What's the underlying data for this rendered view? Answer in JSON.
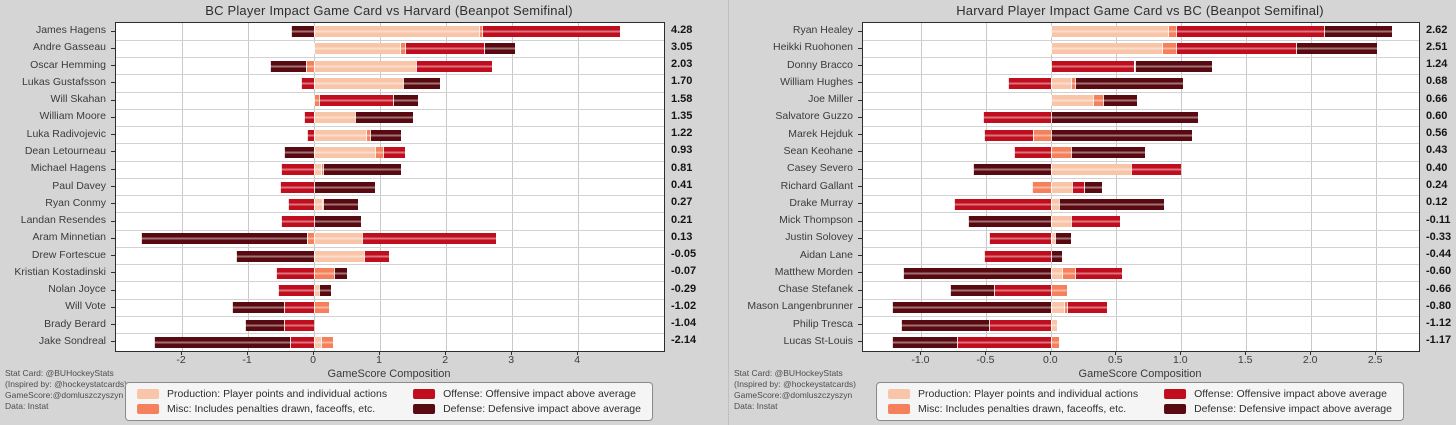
{
  "colors": {
    "production": "#F9C5A9",
    "misc": "#F4805C",
    "offense": "#C00E1E",
    "defense": "#590A10",
    "figure_background": "#D5D5D5",
    "plot_background": "#FFFFFF",
    "grid": "#C9C9C9"
  },
  "legend": {
    "items": [
      {
        "key": "production",
        "label": "Production: Player points and individual actions"
      },
      {
        "key": "misc",
        "label": "Misc: Includes penalties drawn, faceoffs, etc."
      },
      {
        "key": "offense",
        "label": "Offense: Offensive impact above average"
      },
      {
        "key": "defense",
        "label": "Defense: Defensive impact above average"
      }
    ]
  },
  "credits": [
    "Stat Card: @BUHockeyStats",
    "(Inspired by: @hockeystatcards)",
    "GameScore:@domluszczyszyn",
    "Data: Instat"
  ],
  "chart_data": [
    {
      "type": "bar",
      "orientation": "horizontal-stacked",
      "title": "BC Player Impact Game Card vs Harvard (Beanpot Semifinal)",
      "xlabel": "GameScore Composition",
      "grid": true,
      "legend_position": "bottom",
      "xlim": [
        -3.0,
        5.3
      ],
      "xticks": [
        {
          "v": -2,
          "label": "-2"
        },
        {
          "v": -1,
          "label": "-1"
        },
        {
          "v": 0,
          "label": "0"
        },
        {
          "v": 1,
          "label": "1"
        },
        {
          "v": 2,
          "label": "2"
        },
        {
          "v": 3,
          "label": "3"
        },
        {
          "v": 4,
          "label": "4"
        }
      ],
      "series_order": [
        "production",
        "misc",
        "offense",
        "defense"
      ],
      "players": [
        {
          "name": "James Hagens",
          "production": 2.5,
          "misc": 0.04,
          "offense": 2.09,
          "defense": -0.35,
          "total": "4.28"
        },
        {
          "name": "Andre Gasseau",
          "production": 1.3,
          "misc": 0.08,
          "offense": 1.2,
          "defense": 0.47,
          "total": "3.05"
        },
        {
          "name": "Oscar Hemming",
          "production": 1.55,
          "misc": -0.12,
          "offense": 1.15,
          "defense": -0.55,
          "total": "2.03"
        },
        {
          "name": "Lukas Gustafsson",
          "production": 1.35,
          "misc": 0.0,
          "offense": -0.2,
          "defense": 0.55,
          "total": "1.70"
        },
        {
          "name": "Will Skahan",
          "production": 0.0,
          "misc": 0.08,
          "offense": 1.12,
          "defense": 0.38,
          "total": "1.58"
        },
        {
          "name": "William Moore",
          "production": 0.62,
          "misc": 0.0,
          "offense": -0.15,
          "defense": 0.88,
          "total": "1.35"
        },
        {
          "name": "Luka Radivojevic",
          "production": 0.78,
          "misc": 0.06,
          "offense": -0.1,
          "defense": 0.48,
          "total": "1.22"
        },
        {
          "name": "Dean Letourneau",
          "production": 0.93,
          "misc": 0.12,
          "offense": 0.33,
          "defense": -0.45,
          "total": "0.93"
        },
        {
          "name": "Michael Hagens",
          "production": 0.1,
          "misc": 0.03,
          "offense": -0.5,
          "defense": 1.18,
          "total": "0.81"
        },
        {
          "name": "Paul Davey",
          "production": 0.0,
          "misc": 0.0,
          "offense": -0.52,
          "defense": 0.93,
          "total": "0.41"
        },
        {
          "name": "Ryan Conmy",
          "production": 0.12,
          "misc": 0.02,
          "offense": -0.4,
          "defense": 0.53,
          "total": "0.27"
        },
        {
          "name": "Landan Resendes",
          "production": 0.0,
          "misc": 0.0,
          "offense": -0.5,
          "defense": 0.71,
          "total": "0.21"
        },
        {
          "name": "Aram Minnetian",
          "production": 0.73,
          "misc": -0.1,
          "offense": 2.02,
          "defense": -2.52,
          "total": "0.13"
        },
        {
          "name": "Drew Fortescue",
          "production": 0.75,
          "misc": 0.0,
          "offense": 0.38,
          "defense": -1.18,
          "total": "-0.05"
        },
        {
          "name": "Kristian Kostadinski",
          "production": 0.0,
          "misc": 0.3,
          "offense": -0.57,
          "defense": 0.2,
          "total": "-0.07"
        },
        {
          "name": "Nolan Joyce",
          "production": 0.08,
          "misc": 0.0,
          "offense": -0.55,
          "defense": 0.18,
          "total": "-0.29"
        },
        {
          "name": "Will Vote",
          "production": 0.0,
          "misc": 0.23,
          "offense": -0.45,
          "defense": -0.8,
          "total": "-1.02"
        },
        {
          "name": "Brady Berard",
          "production": 0.0,
          "misc": 0.0,
          "offense": -0.46,
          "defense": -0.58,
          "total": "-1.04"
        },
        {
          "name": "Jake Sondreal",
          "production": 0.11,
          "misc": 0.17,
          "offense": -0.37,
          "defense": -2.05,
          "total": "-2.14"
        }
      ]
    },
    {
      "type": "bar",
      "orientation": "horizontal-stacked",
      "title": "Harvard Player Impact Game Card vs BC (Beanpot Semifinal)",
      "xlabel": "GameScore Composition",
      "grid": true,
      "legend_position": "bottom",
      "xlim": [
        -1.45,
        2.83
      ],
      "xticks": [
        {
          "v": -1.0,
          "label": "-1.0"
        },
        {
          "v": -0.5,
          "label": "-0.5"
        },
        {
          "v": 0.0,
          "label": "0.0"
        },
        {
          "v": 0.5,
          "label": "0.5"
        },
        {
          "v": 1.0,
          "label": "1.0"
        },
        {
          "v": 1.5,
          "label": "1.5"
        },
        {
          "v": 2.0,
          "label": "2.0"
        },
        {
          "v": 2.5,
          "label": "2.5"
        }
      ],
      "series_order": [
        "production",
        "misc",
        "offense",
        "defense"
      ],
      "players": [
        {
          "name": "Ryan Healey",
          "production": 0.9,
          "misc": 0.06,
          "offense": 1.14,
          "defense": 0.52,
          "total": "2.62"
        },
        {
          "name": "Heikki Ruohonen",
          "production": 0.85,
          "misc": 0.11,
          "offense": 0.92,
          "defense": 0.63,
          "total": "2.51"
        },
        {
          "name": "Donny Bracco",
          "production": 0.0,
          "misc": 0.0,
          "offense": 0.64,
          "defense": 0.6,
          "total": "1.24"
        },
        {
          "name": "William Hughes",
          "production": 0.15,
          "misc": 0.03,
          "offense": -0.33,
          "defense": 0.83,
          "total": "0.68"
        },
        {
          "name": "Joe Miller",
          "production": 0.32,
          "misc": 0.08,
          "offense": 0.0,
          "defense": 0.26,
          "total": "0.66"
        },
        {
          "name": "Salvatore Guzzo",
          "production": 0.0,
          "misc": 0.0,
          "offense": -0.53,
          "defense": 1.13,
          "total": "0.60"
        },
        {
          "name": "Marek Hejduk",
          "production": 0.0,
          "misc": -0.14,
          "offense": -0.38,
          "defense": 1.08,
          "total": "0.56"
        },
        {
          "name": "Sean Keohane",
          "production": 0.0,
          "misc": 0.15,
          "offense": -0.29,
          "defense": 0.57,
          "total": "0.43"
        },
        {
          "name": "Casey Severo",
          "production": 0.61,
          "misc": 0.0,
          "offense": 0.39,
          "defense": -0.6,
          "total": "0.40"
        },
        {
          "name": "Richard Gallant",
          "production": 0.16,
          "misc": -0.15,
          "offense": 0.09,
          "defense": 0.14,
          "total": "0.24"
        },
        {
          "name": "Drake Murray",
          "production": 0.06,
          "misc": 0.0,
          "offense": -0.75,
          "defense": 0.81,
          "total": "0.12"
        },
        {
          "name": "Mick Thompson",
          "production": 0.15,
          "misc": 0.0,
          "offense": 0.38,
          "defense": -0.64,
          "total": "-0.11"
        },
        {
          "name": "Justin Solovey",
          "production": 0.03,
          "misc": 0.0,
          "offense": -0.48,
          "defense": 0.12,
          "total": "-0.33"
        },
        {
          "name": "Aidan Lane",
          "production": 0.0,
          "misc": 0.0,
          "offense": -0.52,
          "defense": 0.08,
          "total": "-0.44"
        },
        {
          "name": "Matthew Morden",
          "production": 0.08,
          "misc": 0.1,
          "offense": 0.36,
          "defense": -1.14,
          "total": "-0.60"
        },
        {
          "name": "Chase Stefanek",
          "production": 0.0,
          "misc": 0.12,
          "offense": -0.44,
          "defense": -0.34,
          "total": "-0.66"
        },
        {
          "name": "Mason Langenbrunner",
          "production": 0.1,
          "misc": 0.02,
          "offense": 0.31,
          "defense": -1.23,
          "total": "-0.80"
        },
        {
          "name": "Philip Tresca",
          "production": 0.04,
          "misc": 0.0,
          "offense": -0.48,
          "defense": -0.68,
          "total": "-1.12"
        },
        {
          "name": "Lucas St-Louis",
          "production": 0.0,
          "misc": 0.06,
          "offense": -0.73,
          "defense": -0.5,
          "total": "-1.17"
        }
      ]
    }
  ]
}
